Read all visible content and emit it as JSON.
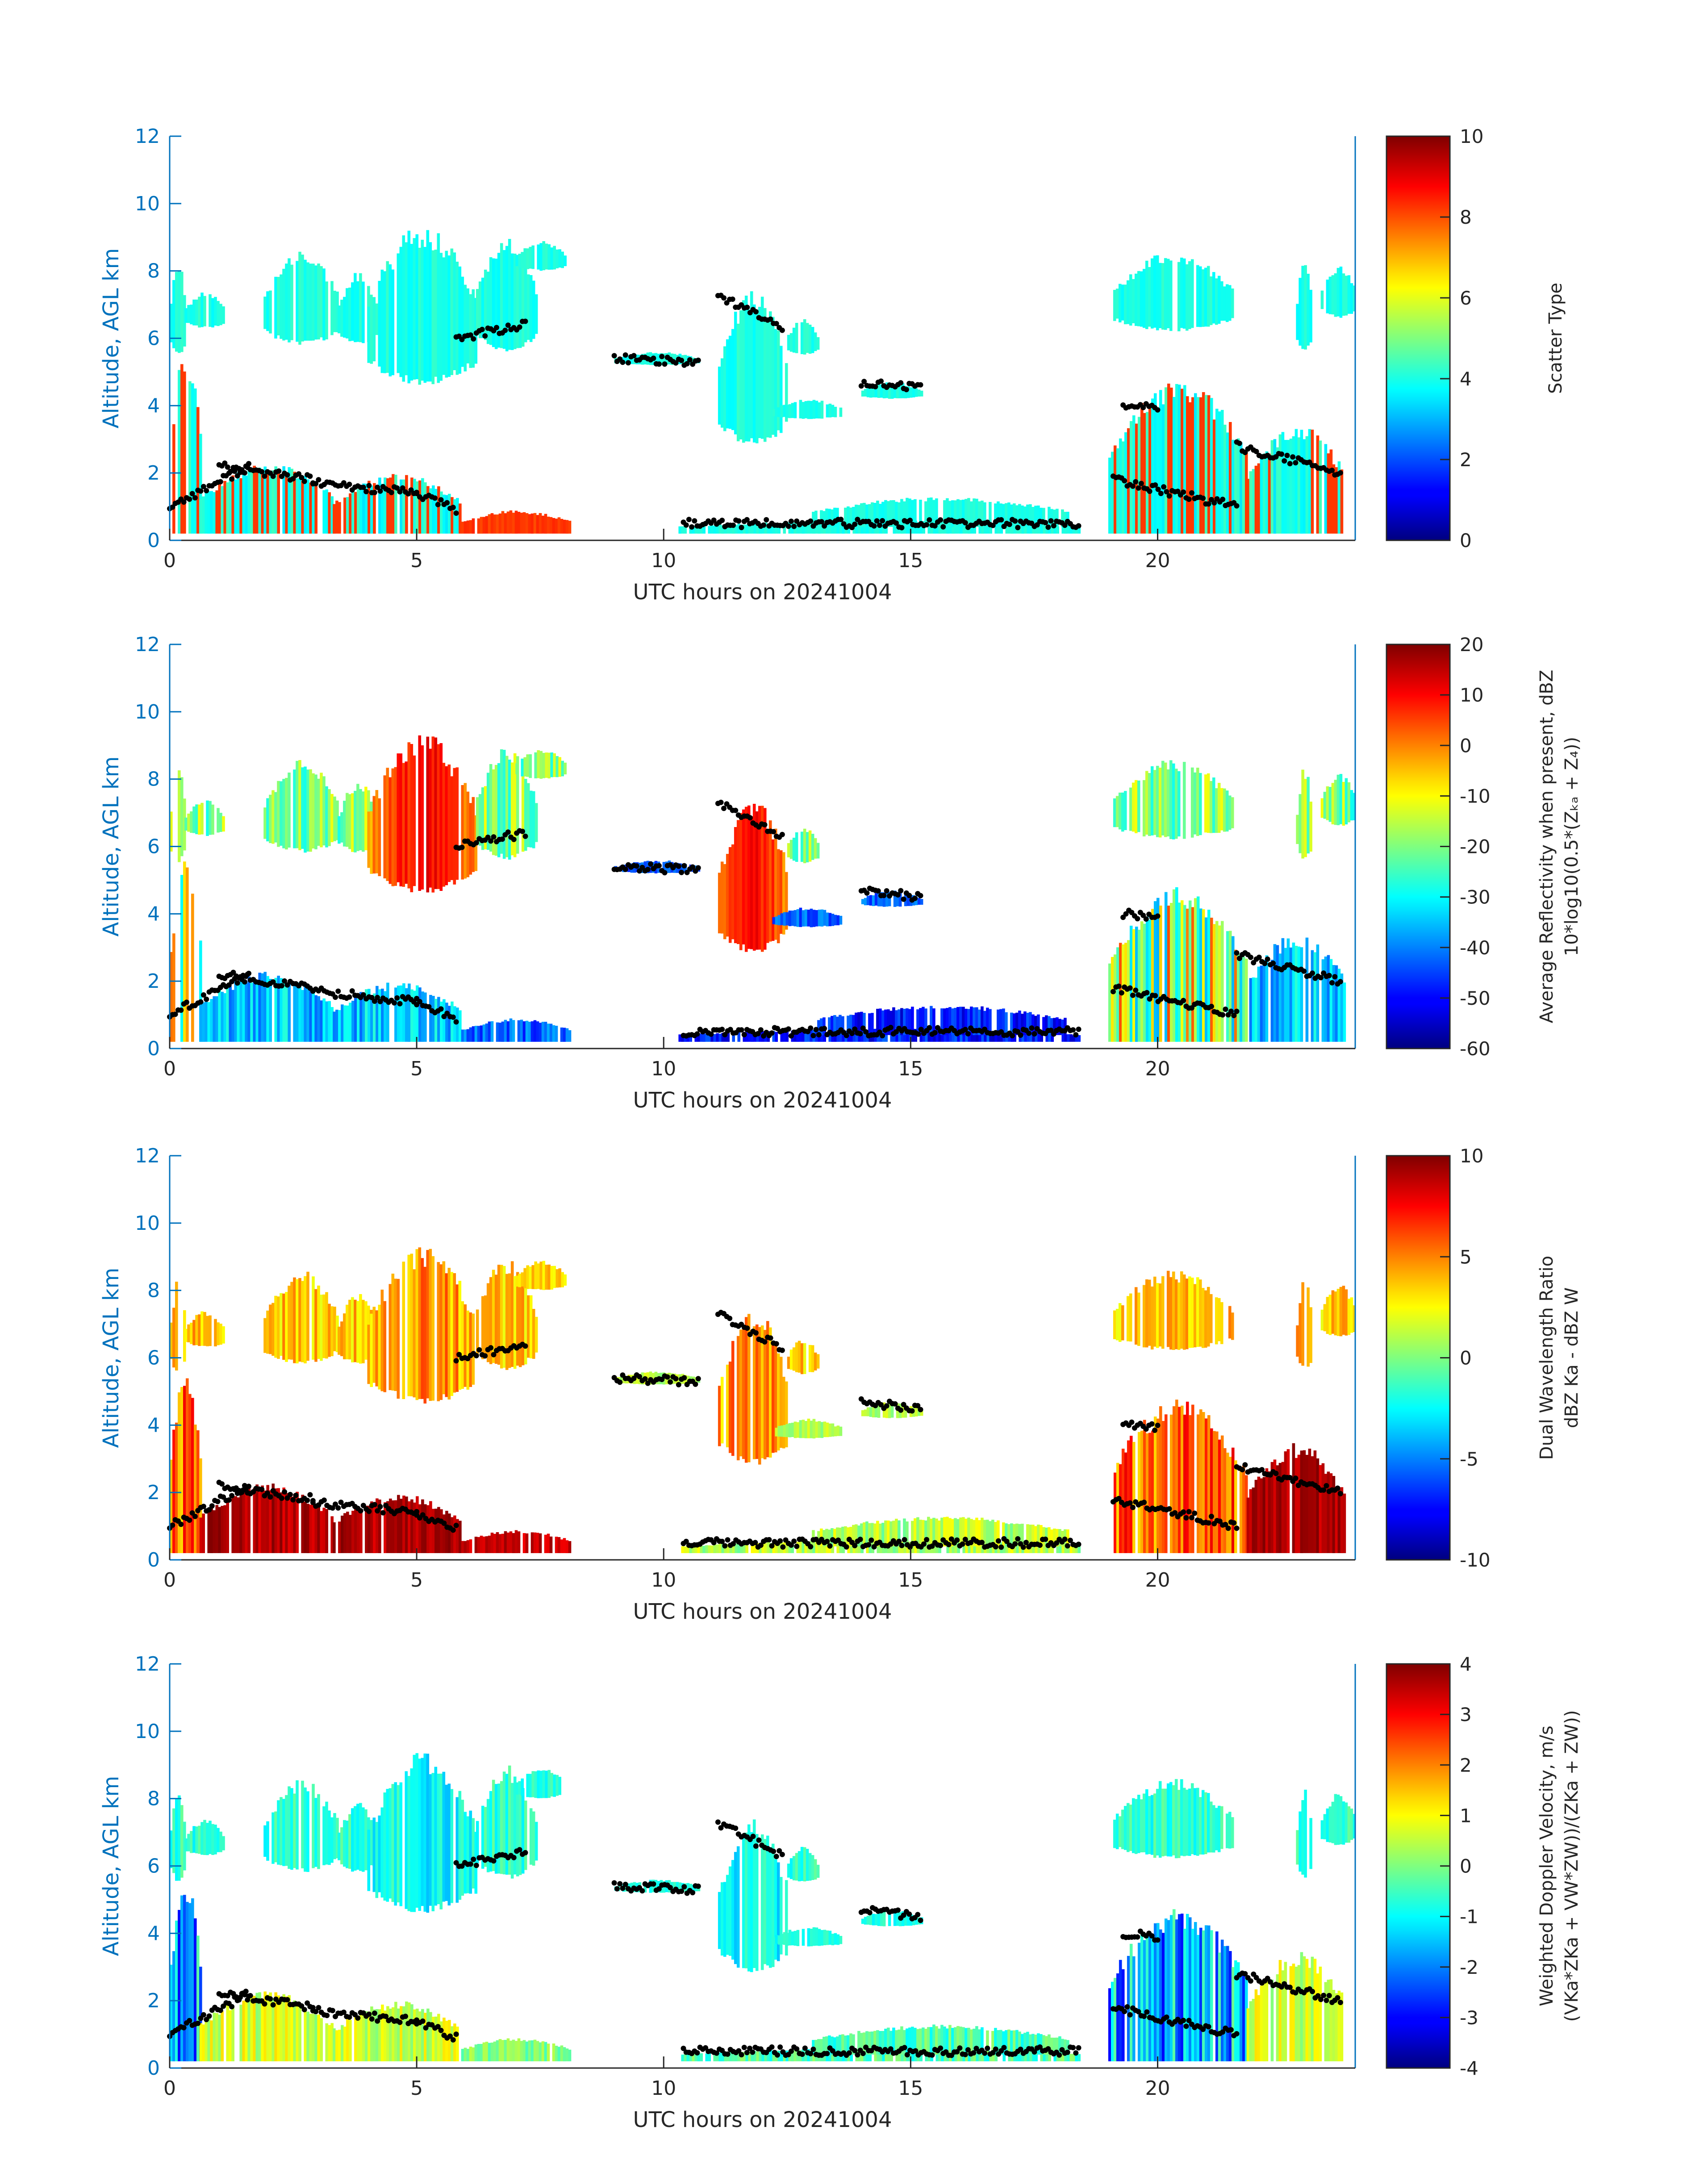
{
  "chart_data": [
    {
      "type": "heatmap",
      "xlabel": "UTC hours on 20241004",
      "ylabel": "Altitude, AGL km",
      "xlim": [
        0,
        24
      ],
      "ylim": [
        0,
        12
      ],
      "xticks": [
        "0",
        "5",
        "10",
        "15",
        "20"
      ],
      "yticks": [
        "0",
        "2",
        "4",
        "6",
        "8",
        "10",
        "12"
      ],
      "colorbar": {
        "label": [
          "Scatter Type"
        ],
        "range": [
          0,
          10
        ],
        "ticks": [
          "0",
          "2",
          "4",
          "6",
          "8",
          "10"
        ],
        "colormap": "jet"
      },
      "grid": false
    },
    {
      "type": "heatmap",
      "xlabel": "UTC hours on 20241004",
      "ylabel": "Altitude, AGL km",
      "xlim": [
        0,
        24
      ],
      "ylim": [
        0,
        12
      ],
      "xticks": [
        "0",
        "5",
        "10",
        "15",
        "20"
      ],
      "yticks": [
        "0",
        "2",
        "4",
        "6",
        "8",
        "10",
        "12"
      ],
      "colorbar": {
        "label": [
          "Average Reflectivity when present, dBZ",
          "10*log10(0.5*(Zₖₐ + Z₄))"
        ],
        "range": [
          -60,
          20
        ],
        "ticks": [
          "-60",
          "-50",
          "-40",
          "-30",
          "-20",
          "-10",
          "0",
          "10",
          "20"
        ],
        "colormap": "jet"
      },
      "grid": false
    },
    {
      "type": "heatmap",
      "xlabel": "UTC hours on 20241004",
      "ylabel": "Altitude, AGL km",
      "xlim": [
        0,
        24
      ],
      "ylim": [
        0,
        12
      ],
      "xticks": [
        "0",
        "5",
        "10",
        "15",
        "20"
      ],
      "yticks": [
        "0",
        "2",
        "4",
        "6",
        "8",
        "10",
        "12"
      ],
      "colorbar": {
        "label": [
          "Dual Wavelength Ratio",
          "dBZ Ka - dBZ W"
        ],
        "range": [
          -10,
          10
        ],
        "ticks": [
          "-10",
          "-5",
          "0",
          "5",
          "10"
        ],
        "colormap": "jet"
      },
      "grid": false
    },
    {
      "type": "heatmap",
      "xlabel": "UTC hours on 20241004",
      "ylabel": "Altitude, AGL km",
      "xlim": [
        0,
        24
      ],
      "ylim": [
        0,
        12
      ],
      "xticks": [
        "0",
        "5",
        "10",
        "15",
        "20"
      ],
      "yticks": [
        "0",
        "2",
        "4",
        "6",
        "8",
        "10",
        "12"
      ],
      "colorbar": {
        "label": [
          "Weighted Doppler Velocity, m/s",
          "(VKa*ZKa + VW*ZW))/(ZKa + ZW))"
        ],
        "range": [
          -4,
          4
        ],
        "ticks": [
          "-4",
          "-3",
          "-2",
          "-1",
          "0",
          "1",
          "2",
          "3",
          "4"
        ],
        "colormap": "jet"
      },
      "grid": false
    }
  ]
}
